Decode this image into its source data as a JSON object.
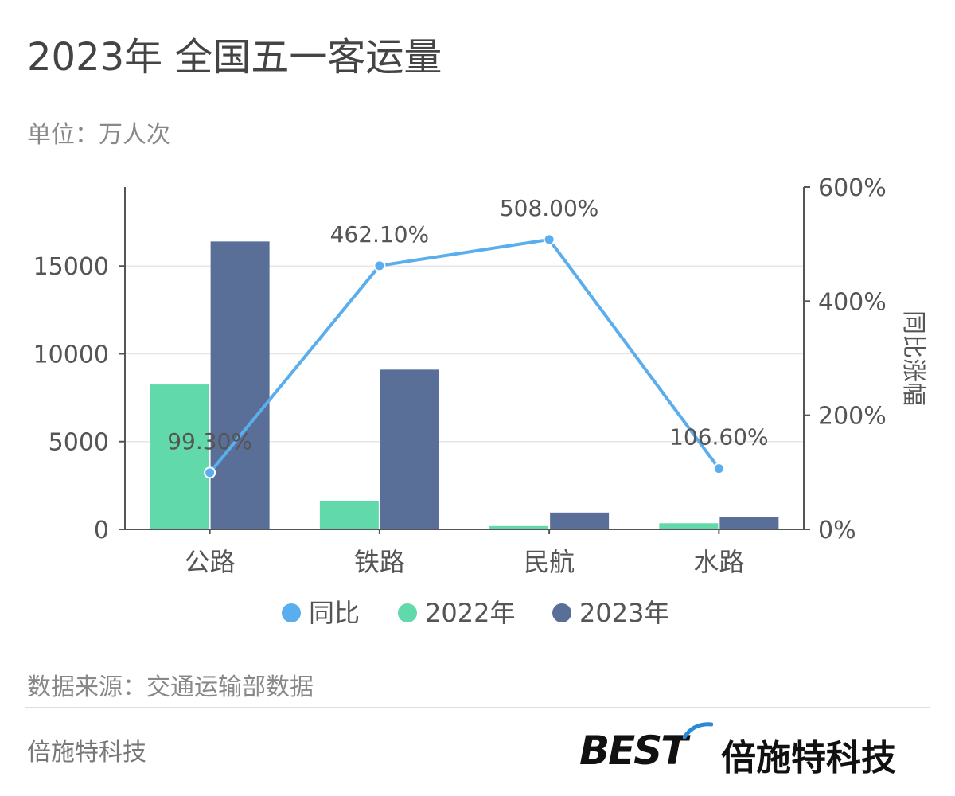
{
  "title": "2023年 全国五一客运量",
  "subtitle": "单位：万人次",
  "source": "数据来源：交通运输部数据",
  "company": "倍施特科技",
  "brand": {
    "logo_text": "BEST",
    "name": "倍施特科技"
  },
  "chart_data": {
    "type": "bar",
    "categories": [
      "公路",
      "铁路",
      "民航",
      "水路"
    ],
    "series": [
      {
        "name": "2022年",
        "type": "bar",
        "axis": "left",
        "color": "#62d9aa",
        "values": [
          8250,
          1630,
          190,
          350
        ]
      },
      {
        "name": "2023年",
        "type": "bar",
        "axis": "left",
        "color": "#5a6f98",
        "values": [
          16400,
          9100,
          960,
          700
        ]
      },
      {
        "name": "同比",
        "type": "line",
        "axis": "right",
        "color": "#5aaeed",
        "values": [
          99.3,
          462.1,
          508.0,
          106.6
        ],
        "labels": [
          "99.30%",
          "462.10%",
          "508.00%",
          "106.60%"
        ]
      }
    ],
    "legend_order": [
      "同比",
      "2022年",
      "2023年"
    ],
    "legend_position": "bottom",
    "y_left": {
      "ticks": [
        0,
        5000,
        10000,
        15000
      ],
      "range": [
        0,
        19500
      ]
    },
    "y_right": {
      "label": "同比涨幅",
      "ticks": [
        "0%",
        "200%",
        "400%",
        "600%"
      ],
      "tick_values": [
        0,
        200,
        400,
        600
      ],
      "range": [
        0,
        600
      ]
    },
    "grid": true
  }
}
